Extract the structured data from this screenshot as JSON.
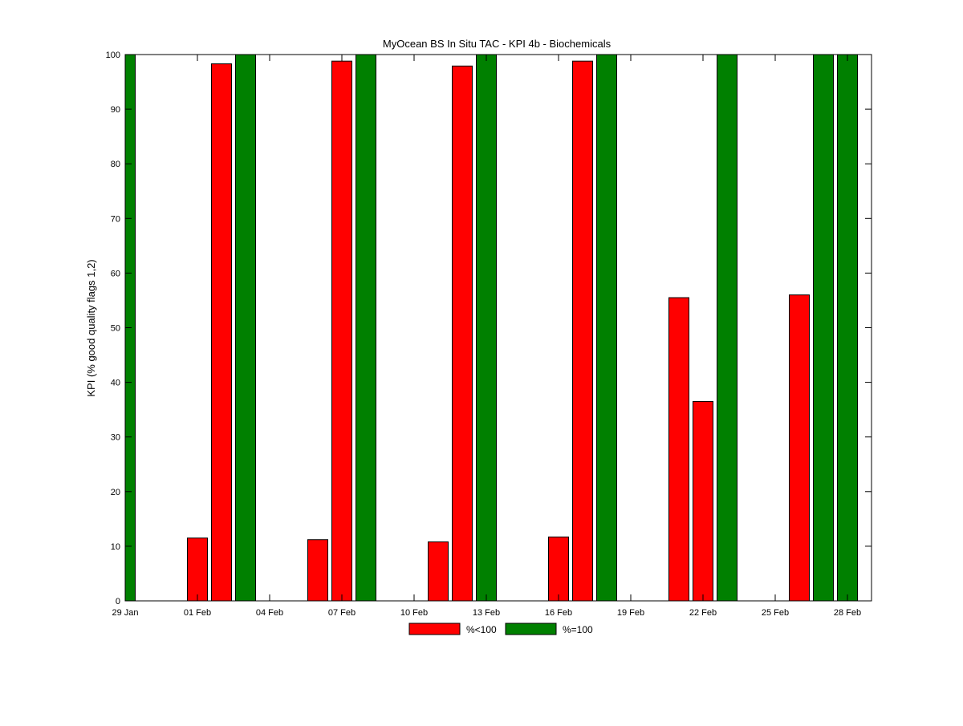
{
  "chart_data": {
    "type": "bar",
    "title": "MyOcean  BS In Situ TAC - KPI 4b - Biochemicals",
    "xlabel": "",
    "ylabel": "KPI (% good quality flags 1,2)",
    "ylim": [
      0,
      100
    ],
    "xlim": [
      "29 Jan",
      "28 Feb"
    ],
    "y_ticks": [
      0,
      10,
      20,
      30,
      40,
      50,
      60,
      70,
      80,
      90,
      100
    ],
    "x_ticks": [
      {
        "day": 0,
        "label": "29 Jan"
      },
      {
        "day": 3,
        "label": "01 Feb"
      },
      {
        "day": 6,
        "label": "04 Feb"
      },
      {
        "day": 9,
        "label": "07 Feb"
      },
      {
        "day": 12,
        "label": "10 Feb"
      },
      {
        "day": 15,
        "label": "13 Feb"
      },
      {
        "day": 18,
        "label": "16 Feb"
      },
      {
        "day": 21,
        "label": "19 Feb"
      },
      {
        "day": 24,
        "label": "22 Feb"
      },
      {
        "day": 27,
        "label": "25 Feb"
      },
      {
        "day": 30,
        "label": "28 Feb"
      }
    ],
    "grid": false,
    "legend": "bottom-center",
    "series": [
      {
        "name": "%<100",
        "color": "#ff0000",
        "key": "red"
      },
      {
        "name": "%=100",
        "color": "#008000",
        "key": "green"
      }
    ],
    "bars": [
      {
        "day": 0,
        "value": 100,
        "series": "green"
      },
      {
        "day": 3,
        "value": 11.5,
        "series": "red"
      },
      {
        "day": 4,
        "value": 98.3,
        "series": "red"
      },
      {
        "day": 5,
        "value": 100,
        "series": "green"
      },
      {
        "day": 8,
        "value": 11.2,
        "series": "red"
      },
      {
        "day": 9,
        "value": 98.8,
        "series": "red"
      },
      {
        "day": 10,
        "value": 100,
        "series": "green"
      },
      {
        "day": 13,
        "value": 10.8,
        "series": "red"
      },
      {
        "day": 14,
        "value": 97.9,
        "series": "red"
      },
      {
        "day": 15,
        "value": 100,
        "series": "green"
      },
      {
        "day": 18,
        "value": 11.7,
        "series": "red"
      },
      {
        "day": 19,
        "value": 98.8,
        "series": "red"
      },
      {
        "day": 20,
        "value": 100,
        "series": "green"
      },
      {
        "day": 23,
        "value": 55.5,
        "series": "red"
      },
      {
        "day": 24,
        "value": 36.5,
        "series": "red"
      },
      {
        "day": 25,
        "value": 100,
        "series": "green"
      },
      {
        "day": 28,
        "value": 56.0,
        "series": "red"
      },
      {
        "day": 29,
        "value": 100,
        "series": "green"
      },
      {
        "day": 30,
        "value": 100,
        "series": "green"
      }
    ]
  }
}
